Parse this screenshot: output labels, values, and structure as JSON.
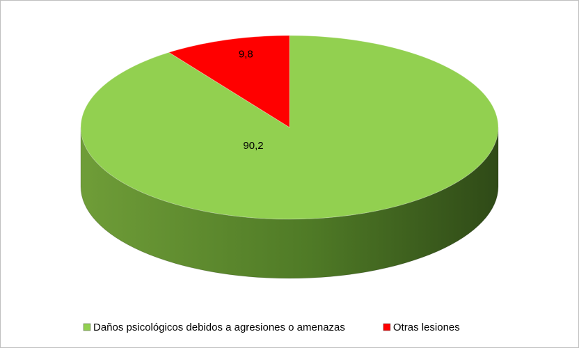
{
  "chart_data": {
    "type": "pie",
    "categories": [
      "Daños psicológicos debidos a agresiones o amenazas",
      "Otras lesiones"
    ],
    "values": [
      90.2,
      9.8
    ],
    "value_labels": [
      "90,2",
      "9,8"
    ],
    "colors": [
      "#92d050",
      "#ff0000"
    ],
    "legend": "bottom"
  }
}
